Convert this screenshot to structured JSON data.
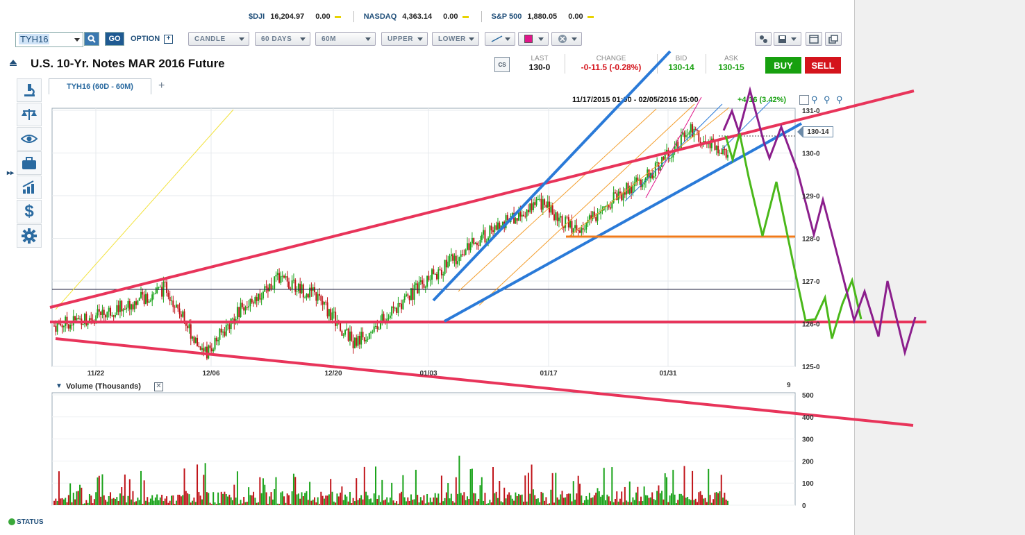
{
  "ticker_strip": [
    {
      "symbol": "$DJI",
      "value": "16,204.97",
      "change": "0.00"
    },
    {
      "symbol": "NASDAQ",
      "value": "4,363.14",
      "change": "0.00"
    },
    {
      "symbol": "S&P 500",
      "value": "1,880.05",
      "change": "0.00"
    }
  ],
  "toolbar": {
    "symbol_value": "TYH16",
    "go_label": "GO",
    "option_label": "OPTION",
    "chart_type": "CANDLE",
    "period": "60 DAYS",
    "interval": "60M",
    "upper": "UPPER",
    "lower": "LOWER"
  },
  "instrument": {
    "title": "U.S. 10-Yr. Notes MAR 2016 Future",
    "last_label": "LAST",
    "last": "130-0",
    "change_label": "CHANGE",
    "change": "-0-11.5 (-0.28%)",
    "bid_label": "BID",
    "bid": "130-14",
    "ask_label": "ASK",
    "ask": "130-15",
    "buy_label": "BUY",
    "sell_label": "SELL",
    "cs_label": "CS"
  },
  "colors": {
    "up": "#1aa31a",
    "down": "#c0141a",
    "buy": "#17a00f",
    "sell": "#d4141c",
    "accent": "#2a6aa0"
  },
  "sidebar_icons": [
    "microscope-icon",
    "scale-icon",
    "eye-icon",
    "briefcase-icon",
    "bar-chart-icon",
    "dollar-icon",
    "gear-icon"
  ],
  "chart_tab": {
    "label": "TYH16 (60D - 60M)",
    "add_label": "+"
  },
  "chart_header": {
    "range": "11/17/2015 01:00 - 02/05/2016 15:00",
    "delta": "+4-16 (3.42%)"
  },
  "price_tag": "130-14",
  "volume_panel": {
    "title": "Volume (Thousands)",
    "count": "9"
  },
  "status_label": "STATUS",
  "chart_data": {
    "type": "candlestick",
    "x_ticks": [
      "11/22",
      "12/06",
      "12/20",
      "01/03",
      "01/17",
      "01/31"
    ],
    "y_ticks": [
      "131-0",
      "130-0",
      "129-0",
      "128-0",
      "127-0",
      "126-0",
      "125-0"
    ],
    "ylim": [
      125,
      131
    ],
    "series": [
      {
        "x": [
          "11/17",
          "11/22",
          "11/29",
          "12/03",
          "12/06",
          "12/10",
          "12/13",
          "12/20",
          "12/27",
          "01/03",
          "01/10",
          "01/14",
          "01/17",
          "01/20",
          "01/24",
          "01/27",
          "01/31",
          "02/03",
          "02/05"
        ],
        "y": [
          126.0,
          126.2,
          126.5,
          126.9,
          125.3,
          126.4,
          127.1,
          126.7,
          125.6,
          126.3,
          127.1,
          127.8,
          128.4,
          128.9,
          128.2,
          129.0,
          129.6,
          130.6,
          130.0
        ]
      }
    ],
    "volume": {
      "ylim": [
        0,
        500
      ],
      "y_ticks": [
        "500",
        "400",
        "300",
        "200",
        "100",
        "0"
      ]
    }
  }
}
